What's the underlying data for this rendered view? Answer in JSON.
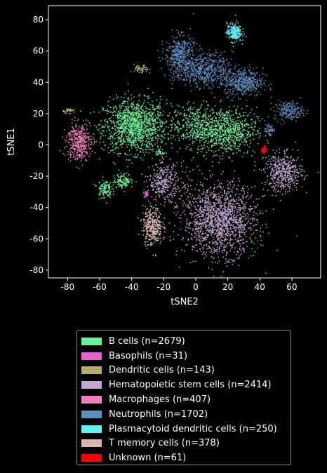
{
  "chart_data": {
    "type": "scatter",
    "title": "",
    "xlabel": "tSNE2",
    "ylabel": "tSNE1",
    "xlim": [
      -92,
      78
    ],
    "ylim": [
      -85,
      89
    ],
    "xticks": [
      -80,
      -60,
      -40,
      -20,
      0,
      20,
      40,
      60
    ],
    "yticks": [
      -80,
      -60,
      -40,
      -20,
      0,
      20,
      40,
      60,
      80
    ],
    "grid": false,
    "legend_position": "below",
    "series": [
      {
        "name": "B cells (n=2679)",
        "color": "#66f29a",
        "n": 2679,
        "clusters": [
          [
            -38,
            12,
            13,
            11,
            1300
          ],
          [
            20,
            9,
            12,
            10,
            700
          ],
          [
            0,
            12,
            10,
            9,
            400
          ],
          [
            -45,
            -23,
            4,
            3,
            120
          ],
          [
            -57,
            -28,
            3,
            4,
            120
          ],
          [
            -22,
            -5,
            2,
            1.5,
            30
          ]
        ]
      },
      {
        "name": "Basophils (n=31)",
        "color": "#ea5fd0",
        "n": 31,
        "clusters": [
          [
            -31,
            -31,
            1.2,
            1.5,
            31
          ]
        ]
      },
      {
        "name": "Dendritic cells (n=143)",
        "color": "#b5ad6a",
        "n": 143,
        "clusters": [
          [
            -34,
            48,
            3,
            2,
            60
          ],
          [
            -79,
            22,
            2.5,
            1,
            35
          ],
          [
            -6,
            -30,
            6,
            10,
            48
          ]
        ]
      },
      {
        "name": "Hematopoietic stem cells (n=2414)",
        "color": "#c4a5d1",
        "n": 2414,
        "clusters": [
          [
            15,
            -48,
            15,
            15,
            1600
          ],
          [
            -20,
            -24,
            6,
            8,
            330
          ],
          [
            55,
            -18,
            8,
            8,
            484
          ]
        ]
      },
      {
        "name": "Macrophages (n=407)",
        "color": "#f07ec0",
        "n": 407,
        "clusters": [
          [
            -73,
            2,
            5,
            8,
            407
          ]
        ]
      },
      {
        "name": "Neutrophils (n=1702)",
        "color": "#5d8ec0",
        "n": 1702,
        "clusters": [
          [
            -10,
            58,
            6,
            8,
            400
          ],
          [
            5,
            48,
            12,
            7,
            600
          ],
          [
            30,
            40,
            8,
            6,
            450
          ],
          [
            58,
            22,
            6,
            4,
            202
          ],
          [
            46,
            10,
            2,
            2,
            50
          ]
        ]
      },
      {
        "name": "Plasmacytoid dendritic cells (n=250)",
        "color": "#5df0f5",
        "n": 250,
        "clusters": [
          [
            24,
            72,
            3,
            4,
            250
          ]
        ]
      },
      {
        "name": "T memory cells (n=378)",
        "color": "#d8b8ae",
        "n": 378,
        "clusters": [
          [
            -27,
            -52,
            4,
            8,
            378
          ]
        ]
      },
      {
        "name": "Unknown (n=61)",
        "color": "#ff0000",
        "n": 61,
        "clusters": [
          [
            43,
            -3,
            1.2,
            1.2,
            61
          ]
        ]
      }
    ]
  }
}
